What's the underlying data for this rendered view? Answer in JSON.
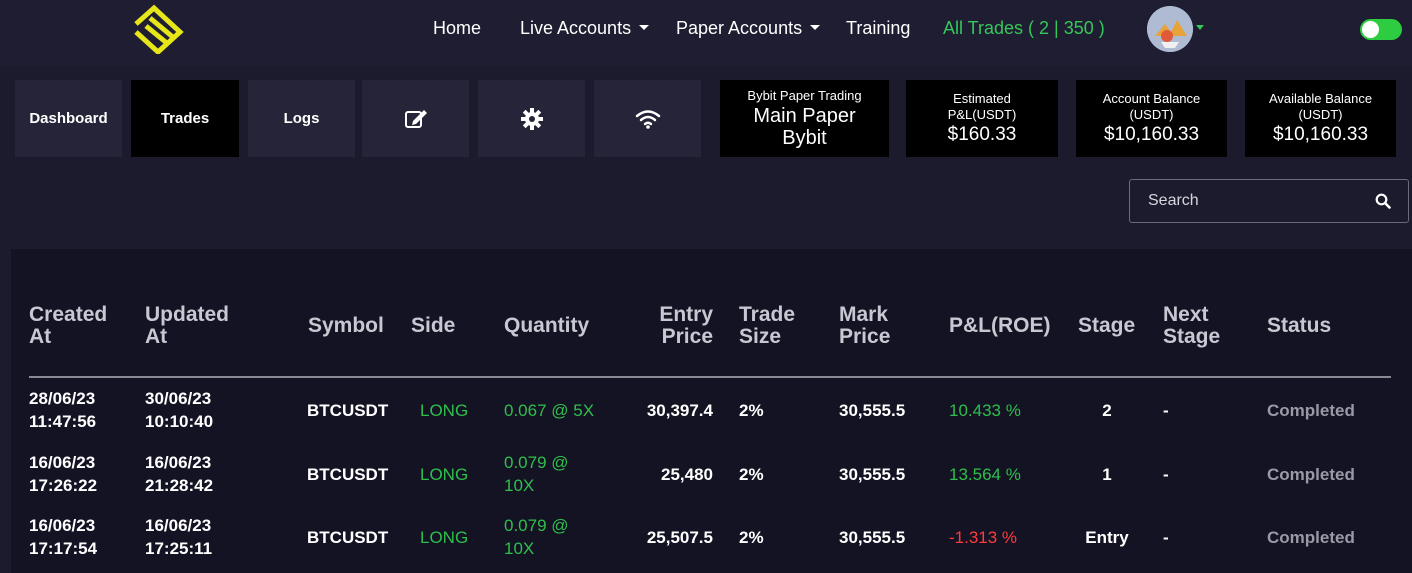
{
  "nav": {
    "items": [
      "Home",
      "Live Accounts",
      "Paper Accounts",
      "Training"
    ],
    "all_trades": "All Trades ( 2 | 350 )"
  },
  "tabs": {
    "dashboard": "Dashboard",
    "trades": "Trades",
    "logs": "Logs"
  },
  "info": {
    "account_type": "Bybit Paper Trading",
    "account_name": "Main Paper Bybit",
    "pnl_label": "Estimated P&L(USDT)",
    "pnl_value": "$160.33",
    "balance_label": "Account Balance (USDT)",
    "balance_value": "$10,160.33",
    "available_label": "Available Balance (USDT)",
    "available_value": "$10,160.33"
  },
  "search": {
    "placeholder": "Search"
  },
  "table": {
    "headers": {
      "created": "Created At",
      "updated": "Updated At",
      "symbol": "Symbol",
      "side": "Side",
      "quantity": "Quantity",
      "entry": "Entry Price",
      "trade_size": "Trade Size",
      "mark": "Mark Price",
      "pnl": "P&L(ROE)",
      "stage": "Stage",
      "next_stage": "Next Stage",
      "status": "Status"
    },
    "rows": [
      {
        "created_date": "28/06/23",
        "created_time": "11:47:56",
        "updated_date": "30/06/23",
        "updated_time": "10:10:40",
        "symbol": "BTCUSDT",
        "side": "LONG",
        "quantity_1": "0.067 @ 5X",
        "quantity_2": "",
        "entry": "30,397.4",
        "trade_size": "2%",
        "mark": "30,555.5",
        "pnl": "10.433 %",
        "stage": "2",
        "next_stage": "-",
        "status": "Completed"
      },
      {
        "created_date": "16/06/23",
        "created_time": "17:26:22",
        "updated_date": "16/06/23",
        "updated_time": "21:28:42",
        "symbol": "BTCUSDT",
        "side": "LONG",
        "quantity_1": "0.079 @",
        "quantity_2": "10X",
        "entry": "25,480",
        "trade_size": "2%",
        "mark": "30,555.5",
        "pnl": "13.564 %",
        "stage": "1",
        "next_stage": "-",
        "status": "Completed"
      },
      {
        "created_date": "16/06/23",
        "created_time": "17:17:54",
        "updated_date": "16/06/23",
        "updated_time": "17:25:11",
        "symbol": "BTCUSDT",
        "side": "LONG",
        "quantity_1": "0.079 @",
        "quantity_2": "10X",
        "entry": "25,507.5",
        "trade_size": "2%",
        "mark": "30,555.5",
        "pnl": "-1.313 %",
        "stage": "Entry",
        "next_stage": "-",
        "status": "Completed"
      }
    ]
  },
  "colors": {
    "background": "#1c1b2e",
    "accent_green": "#2fbf4b",
    "negative_red": "#ff3b3b",
    "logo_yellow": "#e6e619"
  },
  "icons": [
    "logo-icon",
    "caret-down-icon",
    "edit-icon",
    "gear-icon",
    "wifi-icon",
    "search-icon",
    "avatar-icon",
    "toggle-switch"
  ]
}
